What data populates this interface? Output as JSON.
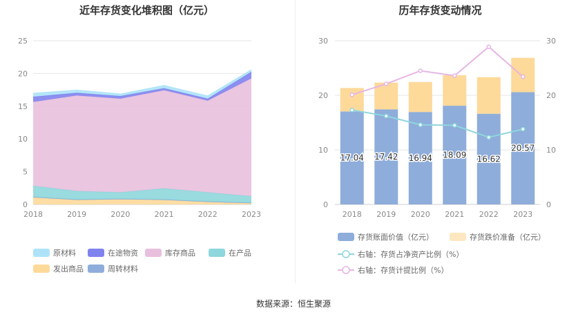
{
  "chart_data": [
    {
      "type": "area",
      "title": "近年存货变化堆积图（亿元）",
      "x": [
        "2018",
        "2019",
        "2020",
        "2021",
        "2022",
        "2023"
      ],
      "ylim": [
        0,
        25
      ],
      "yticks": [
        "0",
        "5",
        "10",
        "15",
        "20",
        "25"
      ],
      "stacked": true,
      "grid": true,
      "legend_position": "bottom",
      "series": [
        {
          "name": "发出商品",
          "color": "#fdd99a",
          "values": [
            1.1,
            0.7,
            0.8,
            0.7,
            0.4,
            0.2
          ]
        },
        {
          "name": "周转材料",
          "color": "#8eadda",
          "values": [
            0.05,
            0.05,
            0.05,
            0.05,
            0.05,
            0.05
          ]
        },
        {
          "name": "在产品",
          "color": "#8ed7dc",
          "values": [
            1.7,
            1.3,
            1.0,
            1.7,
            1.4,
            1.0
          ]
        },
        {
          "name": "库存商品",
          "color": "#e8c0de",
          "values": [
            12.8,
            14.6,
            14.3,
            15.0,
            14.0,
            18.0
          ]
        },
        {
          "name": "在途物资",
          "color": "#7f83ee",
          "values": [
            0.8,
            0.4,
            0.4,
            0.3,
            0.3,
            1.0
          ]
        },
        {
          "name": "原材料",
          "color": "#aee3f7",
          "values": [
            0.5,
            0.4,
            0.3,
            0.4,
            0.4,
            0.3
          ]
        }
      ],
      "legend_order": [
        "原材料",
        "在途物资",
        "库存商品",
        "在产品",
        "发出商品",
        "周转材料"
      ]
    },
    {
      "type": "bar",
      "title": "历年存货变动情况",
      "categories": [
        "2018",
        "2019",
        "2020",
        "2021",
        "2022",
        "2023"
      ],
      "ylim": [
        0,
        30
      ],
      "y2lim": [
        0,
        30
      ],
      "yticks": [
        "0",
        "10",
        "20",
        "30"
      ],
      "y2ticks": [
        "0",
        "10",
        "20",
        "30"
      ],
      "stacked": true,
      "grid": true,
      "legend_position": "bottom",
      "bars": [
        {
          "name": "存货账面价值（亿元）",
          "color": "#8eadda",
          "values": [
            17.04,
            17.42,
            16.94,
            18.09,
            16.62,
            20.57
          ],
          "labels": [
            "17.04",
            "17.42",
            "16.94",
            "18.09",
            "16.62",
            "20.57"
          ]
        },
        {
          "name": "存货跌价准备（亿元）",
          "color": "#fdd99a",
          "values": [
            4.3,
            4.9,
            5.5,
            5.6,
            6.7,
            6.3
          ]
        }
      ],
      "lines": [
        {
          "name": "右轴：存货占净资产比例（%）",
          "color": "#8fd6df",
          "values": [
            17.3,
            16.2,
            14.6,
            14.5,
            12.3,
            13.8
          ]
        },
        {
          "name": "右轴：存货计提比例（%）",
          "color": "#e6b5e4",
          "values": [
            20.1,
            22.1,
            24.5,
            23.6,
            28.9,
            23.4
          ]
        }
      ]
    }
  ],
  "source_text": "数据来源：恒生聚源"
}
